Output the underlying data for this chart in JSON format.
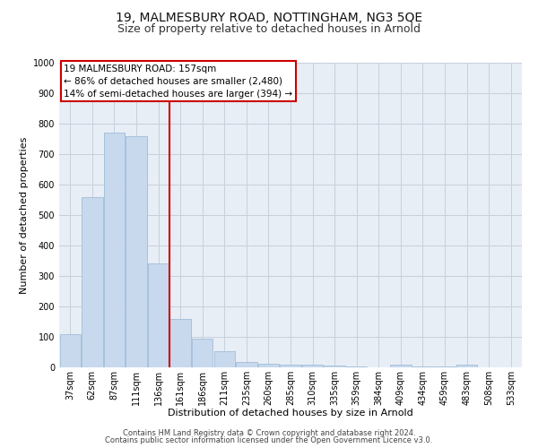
{
  "title": "19, MALMESBURY ROAD, NOTTINGHAM, NG3 5QE",
  "subtitle": "Size of property relative to detached houses in Arnold",
  "xlabel": "Distribution of detached houses by size in Arnold",
  "ylabel": "Number of detached properties",
  "categories": [
    "37sqm",
    "62sqm",
    "87sqm",
    "111sqm",
    "136sqm",
    "161sqm",
    "186sqm",
    "211sqm",
    "235sqm",
    "260sqm",
    "285sqm",
    "310sqm",
    "335sqm",
    "359sqm",
    "384sqm",
    "409sqm",
    "434sqm",
    "459sqm",
    "483sqm",
    "508sqm",
    "533sqm"
  ],
  "values": [
    110,
    560,
    770,
    760,
    340,
    160,
    93,
    53,
    18,
    13,
    8,
    8,
    5,
    3,
    1,
    8,
    3,
    3,
    8,
    1,
    0
  ],
  "bar_color": "#c8d9ee",
  "bar_edge_color": "#a0bcd8",
  "redline_index": 5,
  "annotation_line1": "19 MALMESBURY ROAD: 157sqm",
  "annotation_line2": "← 86% of detached houses are smaller (2,480)",
  "annotation_line3": "14% of semi-detached houses are larger (394) →",
  "annotation_box_facecolor": "#ffffff",
  "annotation_box_edgecolor": "#cc0000",
  "redline_color": "#cc0000",
  "ylim": [
    0,
    1000
  ],
  "yticks": [
    0,
    100,
    200,
    300,
    400,
    500,
    600,
    700,
    800,
    900,
    1000
  ],
  "footer_line1": "Contains HM Land Registry data © Crown copyright and database right 2024.",
  "footer_line2": "Contains public sector information licensed under the Open Government Licence v3.0.",
  "background_color": "#ffffff",
  "plot_bg_color": "#e8eef5",
  "grid_color": "#c8d0dc",
  "title_fontsize": 10,
  "subtitle_fontsize": 9,
  "axis_label_fontsize": 8,
  "tick_fontsize": 7,
  "annotation_fontsize": 7.5,
  "footer_fontsize": 6
}
